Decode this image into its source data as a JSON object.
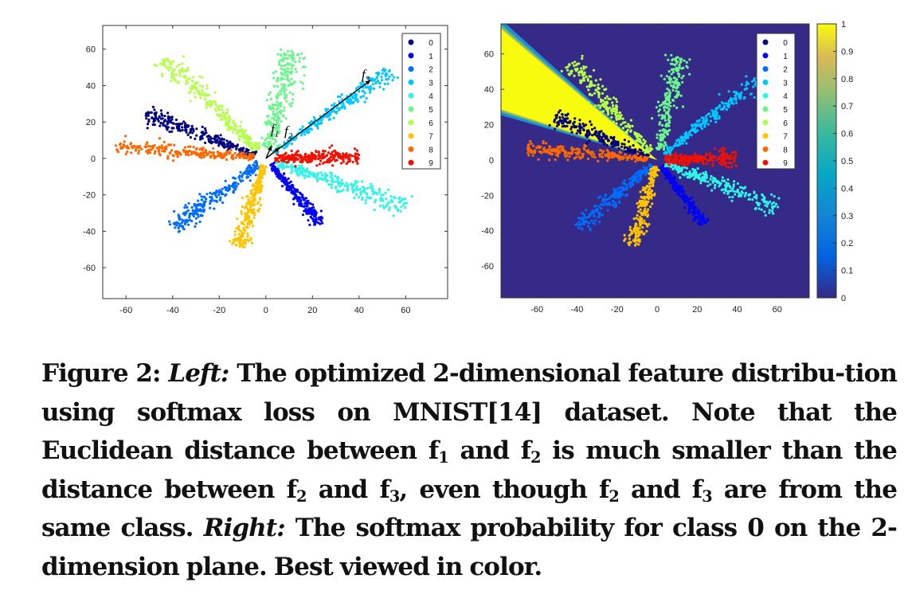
{
  "caption": {
    "figure_label": "Figure 2:",
    "left_label": "Left:",
    "text1": "The optimized 2-dimensional feature distribu-tion using softmax loss on MNIST[14] dataset. Note that the Euclidean distance between f",
    "sub1": "1",
    "text2": " and f",
    "sub2": "2",
    "text3": " is much smaller than the distance between f",
    "sub3": "2",
    "text4": " and f",
    "sub4": "3",
    "text5": ", even though f",
    "sub5": "2",
    "text6": " and f",
    "sub6": "3",
    "text7": " are from the same class.",
    "right_label": "Right:",
    "text8": " The softmax probability for class 0 on the 2-dimension plane. Best viewed in color."
  },
  "annotations": {
    "f": "f",
    "sub1": "1",
    "sub2": "2",
    "sub3": "3"
  },
  "class_colors": [
    "#00007f",
    "#0000f5",
    "#006dff",
    "#00c8ff",
    "#2ef5e8",
    "#6cf58c",
    "#b4ff49",
    "#ffc400",
    "#ff6800",
    "#f21100"
  ],
  "colorbar": {
    "ticks": [
      "0",
      "0.1",
      "0.2",
      "0.3",
      "0.4",
      "0.5",
      "0.6",
      "0.7",
      "0.8",
      "0.9",
      "1"
    ],
    "colormap": "parula"
  },
  "chart_data": [
    {
      "type": "scatter",
      "title": "",
      "xlabel": "",
      "ylabel": "",
      "xlim": [
        -70,
        78
      ],
      "ylim": [
        -77,
        73
      ],
      "xticks": [
        "-60",
        "-40",
        "-20",
        "0",
        "20",
        "40",
        "60"
      ],
      "yticks": [
        "60",
        "40",
        "20",
        "0",
        "-20",
        "-40",
        "-60"
      ],
      "legend_position": "top-right",
      "series": [
        {
          "name": "0",
          "direction_deg": 155,
          "radius_range": [
            5,
            57
          ],
          "width": 3.5
        },
        {
          "name": "1",
          "direction_deg": -57,
          "radius_range": [
            4,
            43
          ],
          "width": 2.5
        },
        {
          "name": "2",
          "direction_deg": -136,
          "radius_range": [
            4,
            55
          ],
          "width": 4
        },
        {
          "name": "3",
          "direction_deg": 42,
          "radius_range": [
            5,
            72
          ],
          "width": 3.5
        },
        {
          "name": "4",
          "direction_deg": -24,
          "radius_range": [
            5,
            66
          ],
          "width": 4.5
        },
        {
          "name": "5",
          "direction_deg": 79,
          "radius_range": [
            6,
            60
          ],
          "width": 5.5
        },
        {
          "name": "6",
          "direction_deg": 128,
          "radius_range": [
            6,
            70
          ],
          "width": 4.5
        },
        {
          "name": "7",
          "direction_deg": -104,
          "radius_range": [
            4,
            50
          ],
          "width": 3.5
        },
        {
          "name": "8",
          "direction_deg": 174,
          "radius_range": [
            5,
            65
          ],
          "width": 3.5
        },
        {
          "name": "9",
          "direction_deg": 2,
          "radius_range": [
            4,
            40
          ],
          "width": 4
        }
      ],
      "vectors": [
        {
          "label": "f1",
          "to": [
            2.5,
            7
          ]
        },
        {
          "label": "f2",
          "to": [
            6,
            6
          ]
        },
        {
          "label": "f3",
          "to": [
            45,
            43
          ]
        }
      ]
    },
    {
      "type": "heatmap",
      "title": "",
      "description_value": "softmax probability for class 0",
      "xlim": [
        -78,
        76
      ],
      "ylim": [
        -78,
        77
      ],
      "xticks": [
        "-60",
        "-40",
        "-20",
        "0",
        "20",
        "40",
        "60"
      ],
      "yticks": [
        "60",
        "40",
        "20",
        "0",
        "-20",
        "-40",
        "-60"
      ],
      "class0_wedge_center_deg": 151,
      "class0_wedge_halfwidth_deg": 11,
      "legend_position": "top-right"
    }
  ]
}
